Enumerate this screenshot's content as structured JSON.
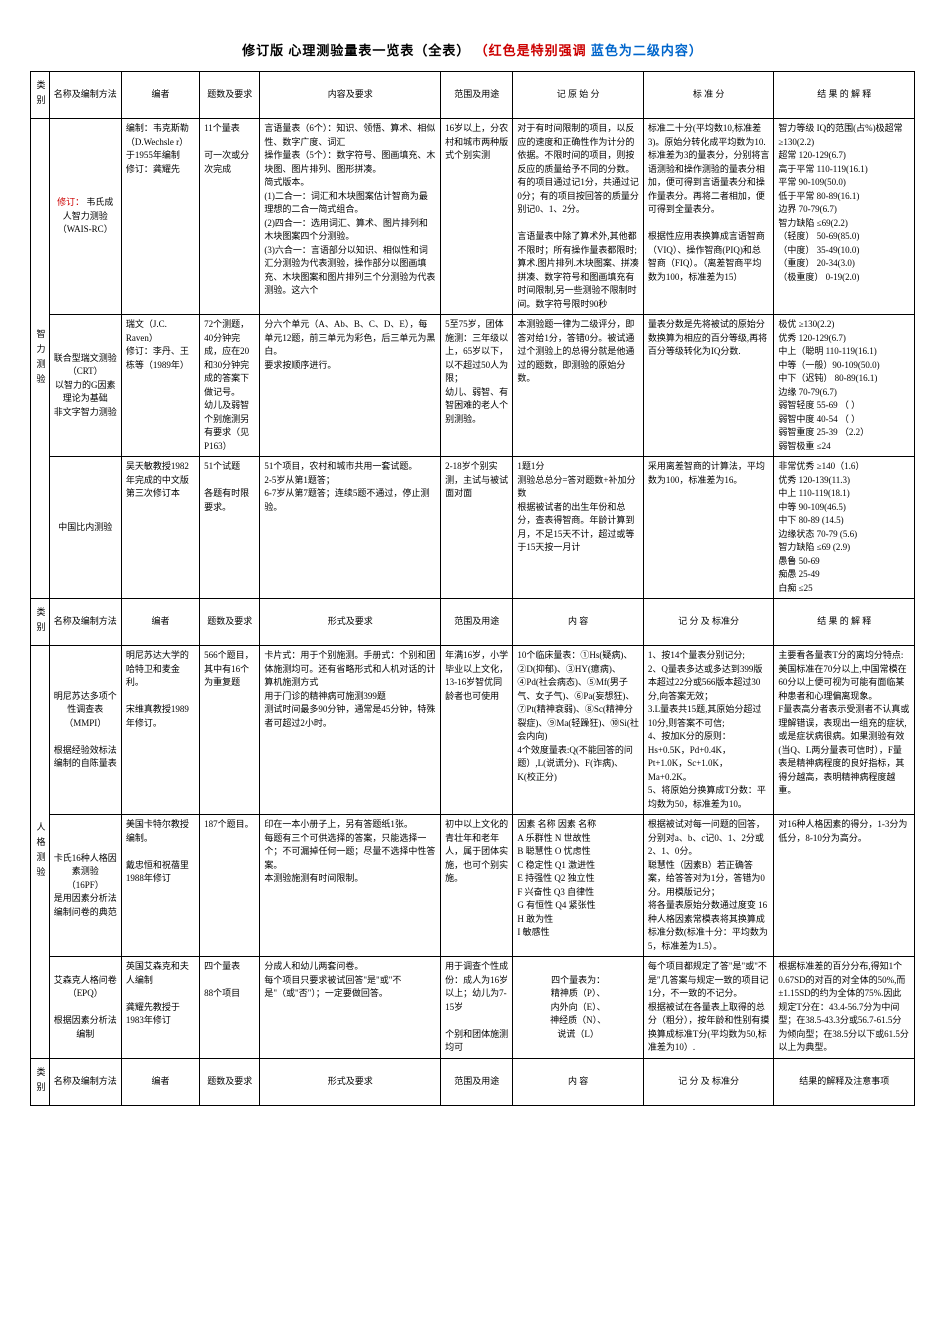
{
  "title_main": "修订版 心理测验量表一览表（全表）",
  "title_red": "（红色是特别强调",
  "title_blue": "蓝色为二级内容）",
  "headers": {
    "cat": "类别",
    "name": "名称及编制方法",
    "editor": "编者",
    "items": "题数及要求",
    "content1": "内容及要求",
    "content2": "形式及要求",
    "range": "范围及用途",
    "raw": "记 原 始 分",
    "std": "标 准 分",
    "score_std": "记 分 及 标准分",
    "content_col": "内  容",
    "interp": "结 果 的 解 释",
    "interp2": "结果的解释及注意事项"
  },
  "cats": {
    "intel": "智力测验",
    "person": "人格测验"
  },
  "rows": {
    "wais": {
      "name": "韦氏成人智力测验（WAIS-RC）",
      "name_note": "修订：",
      "editor": "编制：韦克斯勒（D.Wechsle r）于1955年编制\n修订：龚耀先",
      "items": "11个量表\n\n可一次或分次完成",
      "content": "言语量表（6个）：知识、领悟、算术、相似性、数字广度、词汇\n操作量表（5个）：数字符号、图画填充、木块图、图片排列、图形拼凑。\n简式版本。\n(1)二合一：词汇和木块图案估计智商为最理想的二合一简式组合。\n(2)四合一：选用词汇、算术、图片排列和木块图案四个分测验。\n(3)六合一：言语部分以知识、相似性和词汇分测验为代表测验，操作部分以图画填充、木块图案和图片排列三个分测验为代表测验。这六个",
      "range": "16岁以上，分农村和城市两种版式个别实测",
      "raw": "对于有时间限制的项目，以反应的速度和正确性作为计分的依据。不限时间的项目，则按反应的质量给予不同的分数。\n有的项目通过记1分，共通过记0分；有的项目按回答的质量分别记0、1、2分。\n\n言语量表中除了算术外,其他都不限时；所有操作量表都限时;算术.图片排列.木块图案、拼凑拼凑、数字符号和图画填充有时间限制,另一些测验不限制时间。数字符号限时90秒",
      "std": "标准二十分(平均数10,标准差3)。原始分转化成平均数为10.标准差为3的量表分，分别将言语测验和操作测验的量表分相加，便可得到言语量表分和操作量表分。再将二者相加，便可得到全量表分。\n\n根据性应用表换算成言语智商（VIQ）、操作智商(PIQ)和总智商（FIQ）。（离差智商平均数为100，标准差为15）",
      "interp": "智力等级 IQ的范围(占%)极超常 ≥130(2.2)\n超常    120-129(6.7)\n高于平常 110-119(16.1)\n平常    90-109(50.0)\n低于平常 80-89(16.1)\n边界    70-79(6.7)\n智力缺陷  ≤69(2.2)\n（轻度）  50-69(85.0)\n（中度）  35-49(10.0)\n（重度）  20-34(3.0)\n（极重度） 0-19(2.0)"
    },
    "raven": {
      "name": "联合型瑞文测验（CRT）\n以智力的G因素理论为基础\n非文字智力测验",
      "editor": "瑞文（J.C. Raven）\n修订：李丹、王栋等（1989年）",
      "items": "72个测题，40分钟完成，应在20和30分钟完成的答案下做记号。\n幼儿及弱智个别施测另有要求（见P163）",
      "content": "分六个单元（A、Ab、B、C、D、E），每单元12题，前三单元为彩色，后三单元为黑白。\n要求按顺序进行。",
      "range": "5至75岁，团体施测：三年级以上，65岁以下，以不超过50人为限；\n幼儿、弱智、有智困难的老人个别测验。",
      "raw": "本测验题一律为二级评分，即答对给1分，答错0分。被试通过个测验上的总得分就是他通过的题数，即测验的原始分数。",
      "std": "量表分数是先将被试的原始分数换算为相应的百分等级,再将百分等级转化为IQ分数.",
      "std_box": "百分等级",
      "std_box2": "IQ分数.",
      "interp": "极优    ≥130(2.2)\n优秀    120-129(6.7)\n中上（聪明 110-119(16.1)\n中等（一般）90-109(50.0)\n  中下（迟钝） 80-89(16.1)\n边缘    70-79(6.7)\n弱智轻度 55-69 （ ）\n弱智中度 40-54 （ ）\n弱智重度 25-39  （2.2）\n弱智极重 ≤24"
    },
    "binet": {
      "name": "中国比内测验",
      "editor": "吴天敏教授1982年完成的中文版第三次修订本",
      "items": "51个试题\n\n各题有时限要求。",
      "content": "51个项目，农村和城市共用一套试题。\n2-5岁从第1题答；\n6-7岁从第7题答；连续5题不通过，停止测验。",
      "range": "2-18岁个别实测，主试与被试面对面",
      "raw": "1题1分\n测验总总分=答对题数+补加分数\n根据被试者的出生年份和总分，查表得智商。年龄计算到月，不足15天不计，超过或等于15天按一月计",
      "std": "采用离差智商的计算法，平均数为100，标准差为16。",
      "interp": "非常优秀 ≥140（1.6）\n优秀    120-139(11.3)\n中上    110-119(18.1)\n中等    90-109(46.5)\n中下    80-89 (14.5)\n边缘状态 70-79 (5.6)\n智力缺陷 ≤69 (2.9)\n愚鲁    50-69\n痴愚    25-49\n白痴    ≤25"
    },
    "mmpi": {
      "name": "明尼苏达多项个性调查表（MMPI）\n\n根据经验效标法编制的自陈量表",
      "editor": "明尼苏达大学的哈特卫和麦金利。\n\n宋维真教授1989年修订。",
      "items": "566个题目，其中有16个为重复题",
      "content": "卡片式：用于个别施测。手册式：个别和团体施测均可。还有省略形式和人机对话的计算机施测方式\n  用于门诊的精神病可施测399题\n测试时间最多90分钟，通常是45分钟，特殊者可超过2小时。",
      "range": "年满16岁，小学毕业以上文化，13-16岁智优同龄者也可使用",
      "content_col": "10个临床量表：①Hs(疑病)、②D(抑郁)、③HY(癔病)、④Pd(社会病态)、⑤Mf(男子气、女子气)、⑥Pa(妄想狂)、⑦Pt(精神衰弱)、⑧Sc(精神分裂症)、⑨Ma(轻躁狂)、⑩Si(社会内向)\n4个效度量表:Q(不能回答的问题）,L(说谎分)、F(诈病)、K(校正分)",
      "score": "1、按14个量表分别记分;\n2、Q量表多达或多达到399版本超过22分或566版本超过30分,向答案无效；\n3.L量表共15题,其原始分超过10分,则答案不可信;\n4、按加K分的原则：Hs+0.5K，Pd+0.4K，Pt+1.0K，Sc+1.0K，Ma+0.2K。\n5、将原始分换算成T分数：平均数为50，标准差为10。",
      "interp2": "主要看各量表T分的离均分特点:美国标准在70分以上,中国常模在60分以上便可视为可能有面临某种患者和心理偏离现象。\nF量表高分者表示受测者不认真或理解错误，表现出一组充的症状,或是症状病很病。如果测验有效(当Q、L两分量表可信时），F量表是精神病程度的良好指标，其得分越高，表明精神病程度越重。"
    },
    "16pf": {
      "name": "卡氏16种人格因素测验（16PF）\n是用因素分析法编制问卷的典范",
      "editor": "美国卡特尔教授编制。\n\n戴忠恒和祝蓓里1988年修订",
      "items": "187个题目。",
      "content": "印在一本小册子上，另有答题纸1张。\n每题有三个可供选择的答案，只能选择一个；不可漏掉任何一题；尽量不选择中性答案。\n本测验施测有时间限制。",
      "range": "初中以上文化的青壮年和老年人，属于团体实施，也可个别实施。",
      "content_col": "因素 名称    因素 名称\nA 乐群性    N 世故性\nB 聪慧性    O 忧虑性\nC 稳定性    Q1 激进性\nE 持强性    Q2 独立性\nF 兴奋性    Q3 自律性\nG 有恒性    Q4 紧张性\nH 敢为性\nI 敏感性",
      "score": "根据被试对每一问题的回答，分别对a、b、c记0、1、2分或2、1、0分。\n聪慧性（因素B）若正确答案，给答答对为1分，答错为0分。用模版记分；\n将各量表原始分数通过度变 16种人格因素常模表将其换算成标准分数(标准十分：平均数为5，标准差为1.5）。",
      "interp2": "对16种人格因素的得分，1-3分为低分，8-10分为高分。"
    },
    "epq": {
      "name": "艾森克人格问卷（EPQ）\n\n根据因素分析法编制",
      "editor": "英国艾森克和夫人编制\n\n龚耀先教授于1983年修订",
      "items": "四个量表\n\n88个项目",
      "content": "分成人和幼儿两套问卷。\n每个项目只要求被试回答\"是\"或\"不是\"（或\"否\"）；一定要做回答。",
      "range": "用于调查个性成份：成人为16岁以上；幼儿为7-15岁\n\n个别和团体施测均可",
      "content_col": "四个量表为：\n精神质（P）、\n内外向（E）、\n神经质（N）、\n说谎（L）",
      "score": "每个项目都规定了答\"是\"或\"不是\"几答案与规定一致的项目记1分，不一致的不记分。\n根据被试在各量表上取得的总分（粗分），按年龄和性别有摸换算成标准T分(平均数为50,标准差为10）.",
      "interp2": "根据标准差的百分分布,得知1个0.67SD的对百的对全体的50%,而±1.15SD的约为全体的75%.因此规定T分在：43.4-56.7分为中间型；在38.5-43.3分或56.7-61.5分为倾向型；在38.5分以下或61.5分以上为典型。"
    }
  }
}
